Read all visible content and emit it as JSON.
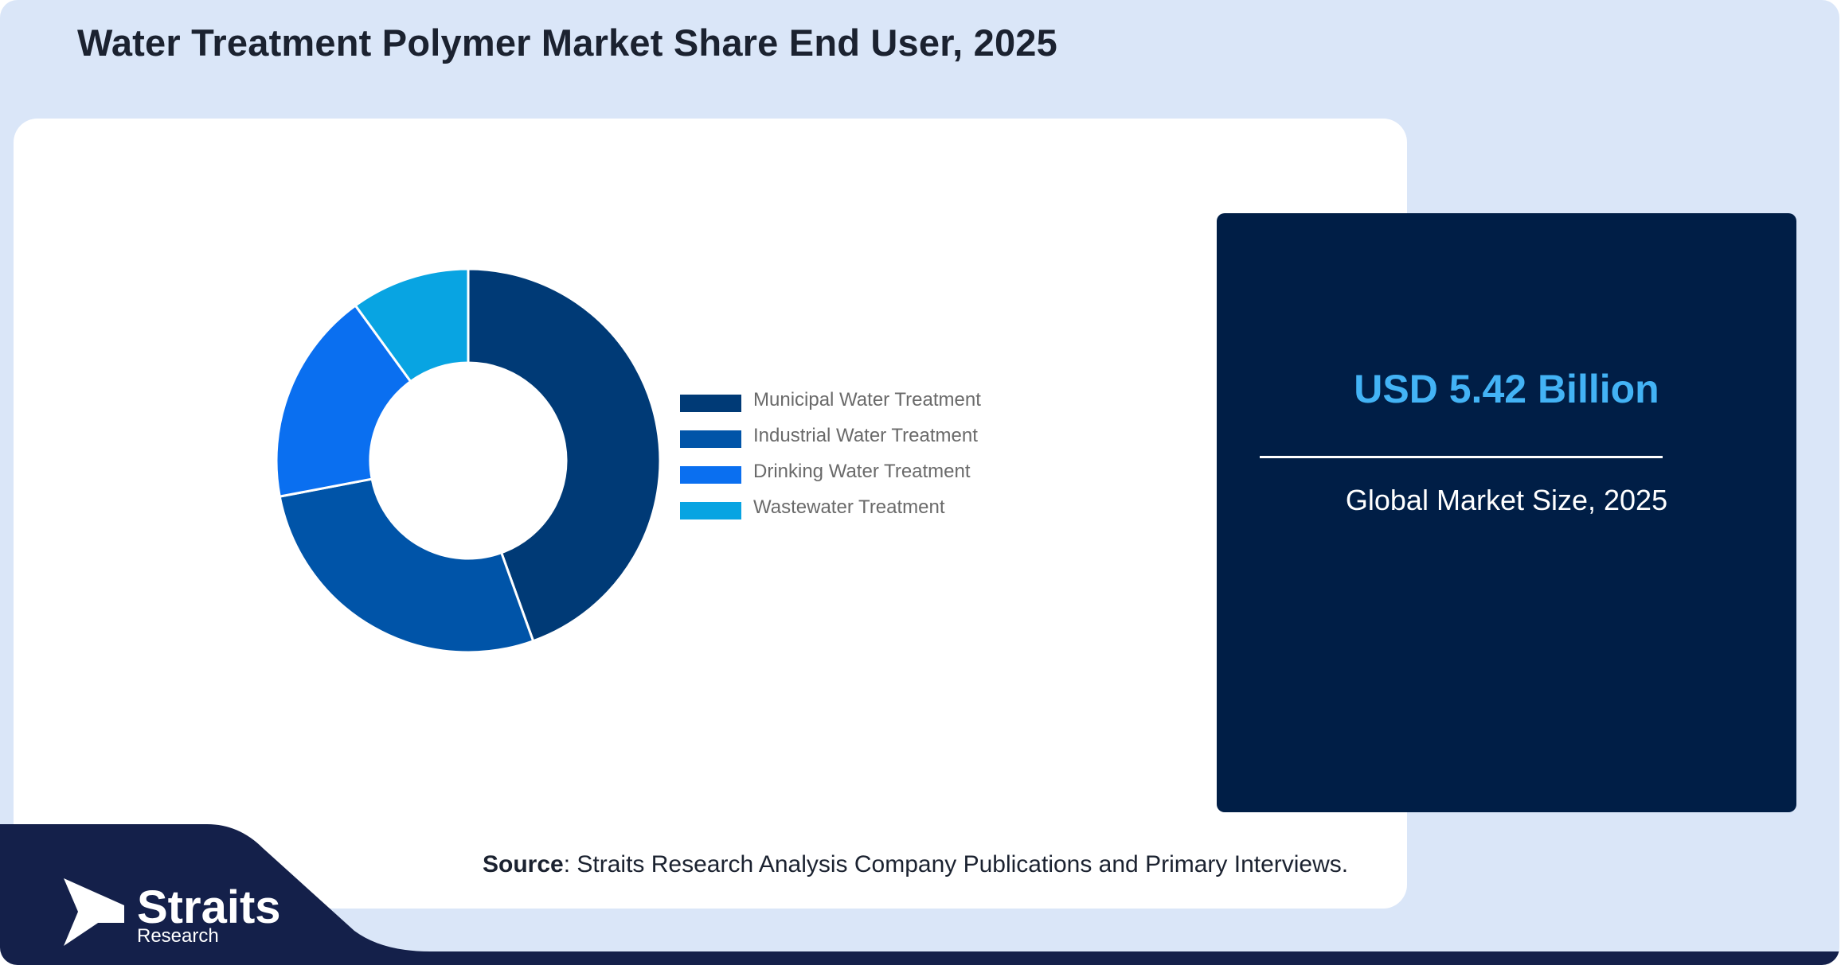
{
  "title": "Water Treatment Polymer Market Share End User, 2025",
  "stat": {
    "value": "USD 5.42 Billion",
    "label": "Global Market Size, 2025"
  },
  "source": {
    "prefix": "Source",
    "text": ": Straits Research Analysis Company Publications and Primary Interviews."
  },
  "brand": {
    "name": "Straits",
    "sub": "Research"
  },
  "colors": {
    "background": "#dae6f8",
    "card": "#001e46",
    "accent": "#43b3f5",
    "footer": "#14204a"
  },
  "chart_data": {
    "type": "pie",
    "donut": true,
    "categories": [
      "Municipal Water Treatment",
      "Industrial Water Treatment",
      "Drinking Water Treatment",
      "Wastewater Treatment"
    ],
    "values": [
      44.5,
      27.5,
      18,
      10
    ],
    "colors": [
      "#003a76",
      "#0054a8",
      "#0a6ff0",
      "#08a4e2"
    ],
    "legend_position": "right"
  }
}
